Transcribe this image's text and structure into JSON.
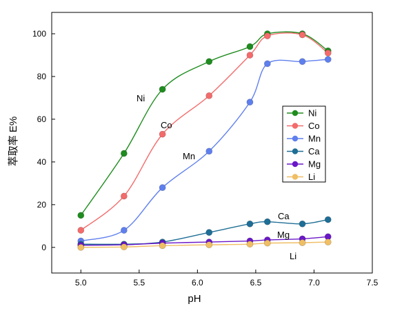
{
  "chart_data": {
    "type": "scatter",
    "xlabel": "pH",
    "ylabel": "萃取率  E%",
    "xlim": [
      4.75,
      7.5
    ],
    "ylim": [
      -12,
      110
    ],
    "xticks": [
      5.0,
      5.5,
      6.0,
      6.5,
      7.0,
      7.5
    ],
    "yticks": [
      0,
      20,
      40,
      60,
      80,
      100
    ],
    "xtick_labels": [
      "5.0",
      "5.5",
      "6.0",
      "6.5",
      "7.0",
      "7.5"
    ],
    "ytick_labels": [
      "0",
      "20",
      "40",
      "60",
      "80",
      "100"
    ],
    "legend_position": "right",
    "series": [
      {
        "name": "Ni",
        "color": "#1e8c1e",
        "x": [
          5.0,
          5.37,
          5.7,
          6.1,
          6.45,
          6.6,
          6.9,
          7.12
        ],
        "y": [
          15,
          44,
          74,
          87,
          94,
          100,
          100,
          92
        ],
        "annotation": "Ni"
      },
      {
        "name": "Co",
        "color": "#f36b6b",
        "x": [
          5.0,
          5.37,
          5.7,
          6.1,
          6.45,
          6.6,
          6.9,
          7.12
        ],
        "y": [
          8,
          24,
          53,
          71,
          90,
          99,
          99.5,
          91
        ],
        "annotation": "Co"
      },
      {
        "name": "Mn",
        "color": "#5f7fee",
        "x": [
          5.0,
          5.37,
          5.7,
          6.1,
          6.45,
          6.6,
          6.9,
          7.12
        ],
        "y": [
          3,
          8,
          28,
          45,
          68,
          86,
          87,
          88
        ],
        "annotation": "Mn"
      },
      {
        "name": "Ca",
        "color": "#1e6e96",
        "x": [
          5.0,
          5.37,
          5.7,
          6.1,
          6.45,
          6.6,
          6.9,
          7.12
        ],
        "y": [
          1.5,
          1.5,
          2.5,
          7,
          11,
          12,
          11,
          13
        ],
        "annotation": "Ca"
      },
      {
        "name": "Mg",
        "color": "#6a17c8",
        "x": [
          5.0,
          5.37,
          5.7,
          6.1,
          6.45,
          6.6,
          6.9,
          7.12
        ],
        "y": [
          1,
          1.2,
          2,
          2.5,
          3,
          3.5,
          4,
          5
        ],
        "annotation": "Mg"
      },
      {
        "name": "Li",
        "color": "#f0be64",
        "x": [
          5.0,
          5.37,
          5.7,
          6.1,
          6.45,
          6.6,
          6.9,
          7.12
        ],
        "y": [
          0,
          0.2,
          0.8,
          1.2,
          1.5,
          2,
          2.2,
          2.5
        ],
        "annotation": "Li"
      }
    ]
  }
}
